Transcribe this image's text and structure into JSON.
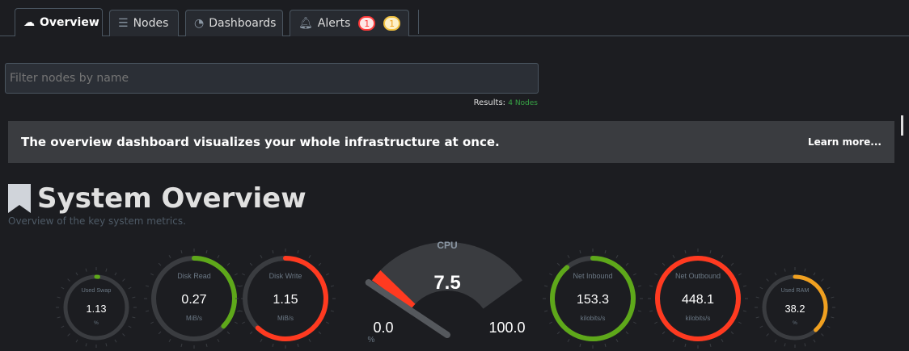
{
  "tabs": [
    {
      "label": "Overview",
      "icon": "overview-icon",
      "active": true
    },
    {
      "label": "Nodes",
      "icon": "server-icon"
    },
    {
      "label": "Dashboards",
      "icon": "gauge-icon"
    },
    {
      "label": "Alerts",
      "icon": "bell-icon",
      "badges": [
        {
          "count": "1",
          "color": "#ff3a3a",
          "bg": "#fde7e7"
        },
        {
          "count": "1",
          "color": "#f0a020",
          "bg": "#fdf0c8"
        }
      ]
    }
  ],
  "filter": {
    "placeholder": "Filter nodes by name"
  },
  "results": {
    "label": "Results:",
    "value": "4 Nodes"
  },
  "banner": {
    "text": "The overview dashboard visualizes your whole infrastructure at once.",
    "link": "Learn more..."
  },
  "section": {
    "title": "System Overview",
    "subtitle": "Overview of the key system metrics."
  },
  "gauges": [
    {
      "title": "Used Swap",
      "value": "1.13",
      "unit": "%",
      "fraction": 0.01,
      "color": "#5ea81a",
      "size": "small"
    },
    {
      "title": "Disk Read",
      "value": "0.27",
      "unit": "MiB/s",
      "fraction": 0.37,
      "color": "#5ea81a",
      "size": "large"
    },
    {
      "title": "Disk Write",
      "value": "1.15",
      "unit": "MiB/s",
      "fraction": 0.62,
      "color": "#ff3a20",
      "size": "large"
    },
    {
      "title": "Net Inbound",
      "value": "153.3",
      "unit": "kilobits/s",
      "fraction": 0.89,
      "color": "#5ea81a",
      "size": "large"
    },
    {
      "title": "Net Outbound",
      "value": "448.1",
      "unit": "kilobits/s",
      "fraction": 1.0,
      "color": "#ff3a20",
      "size": "large"
    },
    {
      "title": "Used RAM",
      "value": "38.2",
      "unit": "%",
      "fraction": 0.382,
      "color": "#f0a020",
      "size": "small"
    }
  ],
  "cpu": {
    "title": "CPU",
    "value": "7.5",
    "min": "0.0",
    "max": "100.0",
    "unit": "%",
    "fraction": 0.075,
    "color": "#ff3a20"
  }
}
